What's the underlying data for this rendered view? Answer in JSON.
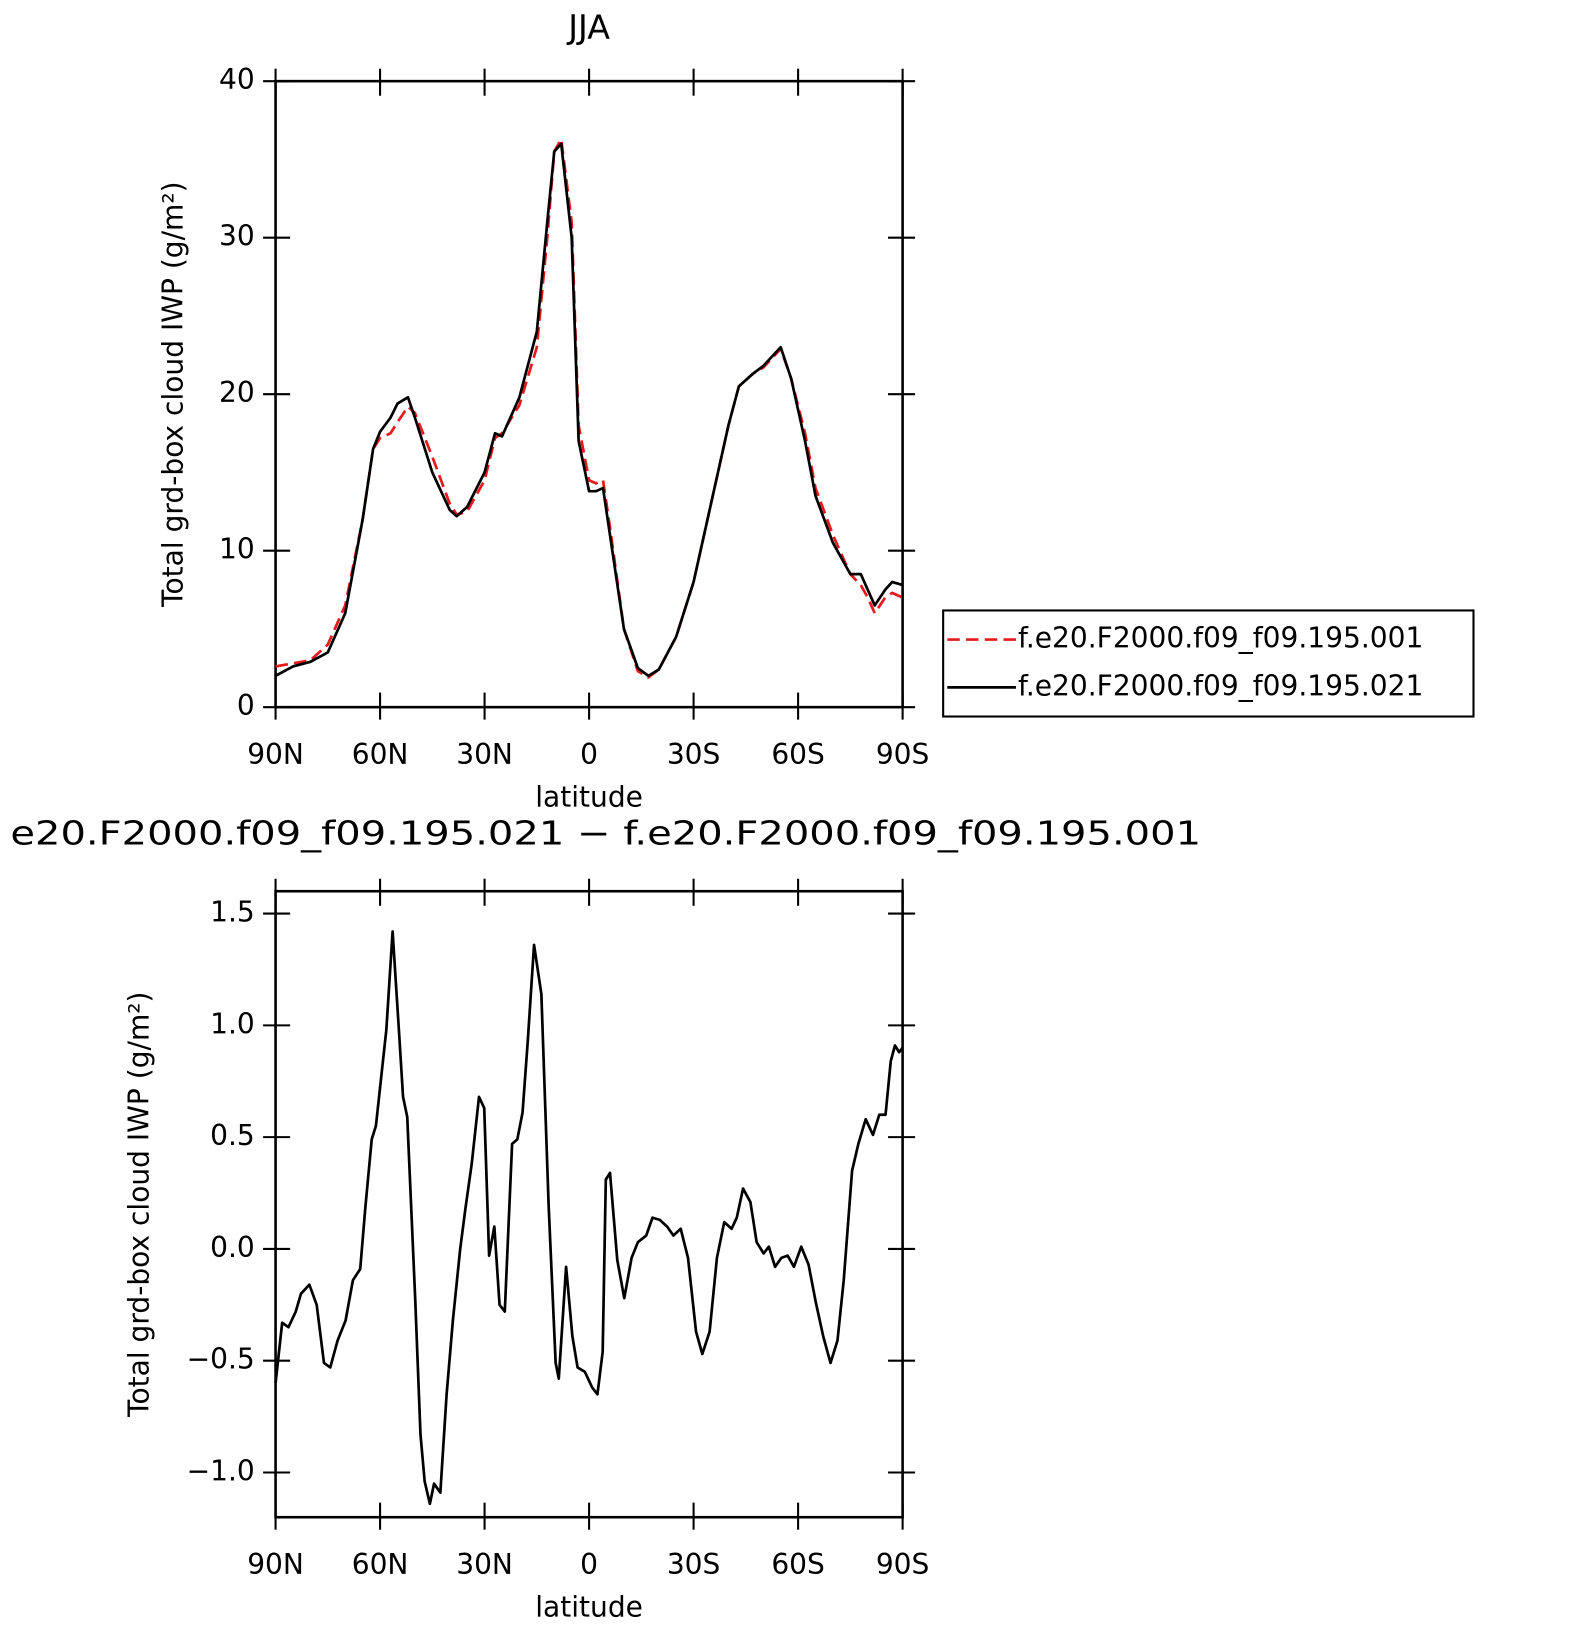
{
  "chart_data": [
    {
      "type": "line",
      "title": "JJA",
      "xlabel": "latitude",
      "ylabel": "Total grd-box cloud IWP (g/m²)",
      "x": [
        90,
        85,
        80,
        75,
        70,
        65,
        62,
        60,
        57,
        55,
        52,
        50,
        45,
        40,
        38,
        35,
        30,
        27,
        25,
        20,
        15,
        12,
        10,
        8,
        5,
        3,
        0,
        -2,
        -4,
        -6,
        -10,
        -14,
        -17,
        -20,
        -25,
        -30,
        -35,
        -40,
        -43,
        -47,
        -50,
        -55,
        -58,
        -62,
        -65,
        -70,
        -75,
        -78,
        -80,
        -82,
        -85,
        -87,
        -90
      ],
      "series": [
        {
          "name": "f.e20.F2000.f09_f09.195.001",
          "color": "#e41a1c",
          "dashed": true,
          "values": [
            2.6,
            2.8,
            3.0,
            4,
            6.5,
            12,
            16.5,
            17.2,
            17.5,
            18.2,
            19.2,
            18.8,
            16,
            13,
            12.3,
            12.5,
            14.5,
            17.2,
            17.5,
            19.3,
            23,
            30,
            35.5,
            36.3,
            31,
            18,
            14.5,
            14.3,
            14.5,
            11.5,
            5,
            2.3,
            1.9,
            2.4,
            4.5,
            8,
            13,
            18,
            20.5,
            21.3,
            21.7,
            22.9,
            21,
            17.5,
            14,
            11,
            8.5,
            7.8,
            7,
            6,
            7,
            7.3,
            7.0
          ]
        },
        {
          "name": "f.e20.F2000.f09_f09.195.021",
          "color": "#000000",
          "dashed": false,
          "values": [
            2.0,
            2.6,
            2.9,
            3.5,
            6,
            12,
            16.5,
            17.6,
            18.5,
            19.4,
            19.8,
            18.5,
            15,
            12.6,
            12.2,
            12.8,
            15,
            17.5,
            17.3,
            19.8,
            24,
            31,
            35.5,
            36,
            30,
            17,
            13.8,
            13.8,
            14,
            11,
            5,
            2.5,
            2.0,
            2.4,
            4.5,
            8,
            13,
            18,
            20.5,
            21.3,
            21.8,
            23,
            21,
            17,
            13.5,
            10.5,
            8.5,
            8.5,
            7.5,
            6.5,
            7.5,
            8,
            7.8
          ]
        }
      ],
      "xlim": [
        90,
        -90
      ],
      "xticks": [
        {
          "value": 90,
          "label": "90N"
        },
        {
          "value": 60,
          "label": "60N"
        },
        {
          "value": 30,
          "label": "30N"
        },
        0,
        {
          "value": -30,
          "label": "30S"
        },
        {
          "value": -60,
          "label": "60S"
        },
        {
          "value": -90,
          "label": "90S"
        }
      ],
      "ylim": [
        0,
        40
      ],
      "yticks": [
        0,
        10,
        20,
        30,
        40
      ],
      "legend": "right"
    },
    {
      "type": "line",
      "title": "e20.F2000.f09_f09.195.021 − f.e20.F2000.f09_f09.195.001",
      "xlabel": "latitude",
      "ylabel": "Total grd-box cloud IWP (g/m²)",
      "x": [
        90,
        88.1,
        86.3,
        84.2,
        82.7,
        80.3,
        78.2,
        76.1,
        74.3,
        72.2,
        69.9,
        67.8,
        65.7,
        64.2,
        62.4,
        61.2,
        58.2,
        56.4,
        54.6,
        53.4,
        52.2,
        49.9,
        48.4,
        47.2,
        45.7,
        44.5,
        42.7,
        40.9,
        39.1,
        37.0,
        35.5,
        33.7,
        31.6,
        30.1,
        28.7,
        27.2,
        25.7,
        24.2,
        22.1,
        20.6,
        19.1,
        17.6,
        15.8,
        13.7,
        11.6,
        9.6,
        8.7,
        6.6,
        4.8,
        3.3,
        1.2,
        -0.9,
        -2.4,
        -3.9,
        -4.8,
        -6.0,
        -8.1,
        -10.1,
        -12.2,
        -14.0,
        -16.4,
        -18.2,
        -20.3,
        -22.4,
        -24.2,
        -26.3,
        -28.4,
        -30.7,
        -32.5,
        -34.6,
        -36.7,
        -38.8,
        -40.9,
        -42.4,
        -44.2,
        -46.3,
        -48.1,
        -50.1,
        -51.6,
        -53.4,
        -55.2,
        -57.0,
        -58.8,
        -60.9,
        -63.0,
        -65.1,
        -67.2,
        -69.3,
        -71.3,
        -73.1,
        -75.5,
        -77.3,
        -79.4,
        -81.5,
        -83.3,
        -85.1,
        -86.6,
        -87.8,
        -89.0,
        -90
      ],
      "series": [
        {
          "color": "#000000",
          "dashed": false,
          "values": [
            -0.6,
            -0.33,
            -0.35,
            -0.28,
            -0.2,
            -0.16,
            -0.25,
            -0.51,
            -0.53,
            -0.41,
            -0.32,
            -0.14,
            -0.09,
            0.19,
            0.49,
            0.55,
            0.98,
            1.42,
            0.98,
            0.68,
            0.59,
            -0.23,
            -0.83,
            -1.04,
            -1.14,
            -1.05,
            -1.09,
            -0.65,
            -0.32,
            0.0,
            0.18,
            0.38,
            0.68,
            0.63,
            -0.03,
            0.1,
            -0.25,
            -0.28,
            0.47,
            0.49,
            0.61,
            0.93,
            1.36,
            1.14,
            0.19,
            -0.51,
            -0.58,
            -0.08,
            -0.39,
            -0.53,
            -0.55,
            -0.62,
            -0.65,
            -0.46,
            0.31,
            0.34,
            -0.05,
            -0.22,
            -0.04,
            0.03,
            0.06,
            0.14,
            0.13,
            0.1,
            0.06,
            0.09,
            -0.04,
            -0.37,
            -0.47,
            -0.37,
            -0.04,
            0.12,
            0.09,
            0.14,
            0.27,
            0.21,
            0.03,
            -0.02,
            0.01,
            -0.08,
            -0.04,
            -0.03,
            -0.08,
            0.01,
            -0.07,
            -0.24,
            -0.39,
            -0.51,
            -0.41,
            -0.14,
            0.35,
            0.47,
            0.58,
            0.51,
            0.6,
            0.6,
            0.84,
            0.91,
            0.88,
            0.9
          ]
        }
      ],
      "xlim": [
        90,
        -90
      ],
      "xticks": [
        {
          "value": 90,
          "label": "90N"
        },
        {
          "value": 60,
          "label": "60N"
        },
        {
          "value": 30,
          "label": "30N"
        },
        0,
        {
          "value": -30,
          "label": "30S"
        },
        {
          "value": -60,
          "label": "60S"
        },
        {
          "value": -90,
          "label": "90S"
        }
      ],
      "ylim": [
        -1.2,
        1.6
      ],
      "yticks": [
        {
          "value": -1,
          "label": "−1.0"
        },
        {
          "value": -0.5,
          "label": "−0.5"
        },
        {
          "value": 0,
          "label": "0.0"
        },
        0.5,
        {
          "value": 1,
          "label": "1.0"
        },
        1.5
      ]
    }
  ]
}
